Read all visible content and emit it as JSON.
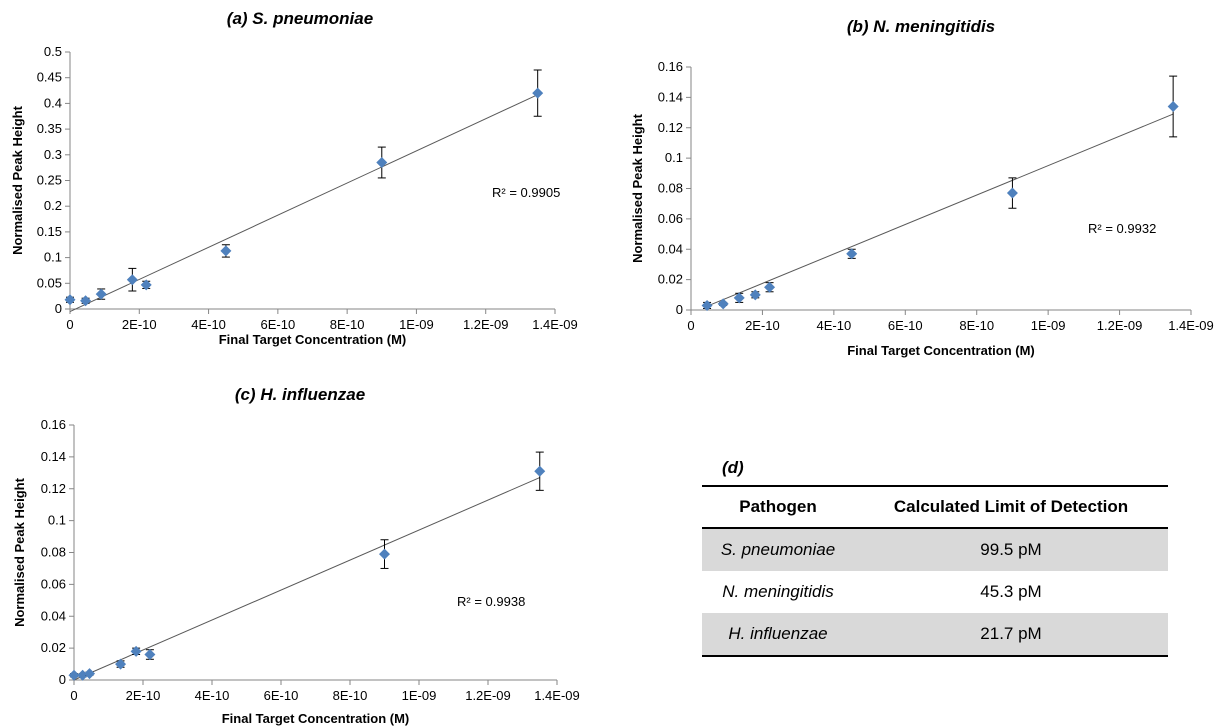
{
  "chart_data": [
    {
      "type": "scatter",
      "title": "(a) S. pneumoniae",
      "xlabel": "Final Target Concentration (M)",
      "ylabel": "Normalised Peak Height",
      "xlim": [
        0,
        1.4e-09
      ],
      "ylim": [
        0,
        0.5
      ],
      "x_ticks": [
        0,
        2e-10,
        4e-10,
        6e-10,
        8e-10,
        1e-09,
        1.2e-09,
        1.4e-09
      ],
      "x_tick_labels": [
        "0",
        "2E-10",
        "4E-10",
        "6E-10",
        "8E-10",
        "1E-09",
        "1.2E-09",
        "1.4E-09"
      ],
      "y_ticks": [
        0,
        0.05,
        0.1,
        0.15,
        0.2,
        0.25,
        0.3,
        0.35,
        0.4,
        0.45,
        0.5
      ],
      "y_tick_labels": [
        "0",
        "0.05",
        "0.1",
        "0.15",
        "0.2",
        "0.25",
        "0.3",
        "0.35",
        "0.4",
        "0.45",
        "0.5"
      ],
      "grid": false,
      "marker_color": "#4f81bd",
      "points": [
        {
          "x": 0,
          "y": 0.018,
          "err": 0.005
        },
        {
          "x": 4.5e-11,
          "y": 0.016,
          "err": 0.005
        },
        {
          "x": 9e-11,
          "y": 0.029,
          "err": 0.01
        },
        {
          "x": 1.8e-10,
          "y": 0.057,
          "err": 0.022
        },
        {
          "x": 2.2e-10,
          "y": 0.047,
          "err": 0.007
        },
        {
          "x": 4.5e-10,
          "y": 0.113,
          "err": 0.012
        },
        {
          "x": 9e-10,
          "y": 0.285,
          "err": 0.03
        },
        {
          "x": 1.35e-09,
          "y": 0.42,
          "err": 0.045
        }
      ],
      "trendline": {
        "x": [
          0,
          1.35e-09
        ],
        "y": [
          -0.005,
          0.417
        ]
      },
      "r2_text": "R² = 0.9905"
    },
    {
      "type": "scatter",
      "title": "(b) N. meningitidis",
      "xlabel": "Final Target Concentration (M)",
      "ylabel": "Normalised Peak Height",
      "xlim": [
        0,
        1.4e-09
      ],
      "ylim": [
        0,
        0.16
      ],
      "x_ticks": [
        0,
        2e-10,
        4e-10,
        6e-10,
        8e-10,
        1e-09,
        1.2e-09,
        1.4e-09
      ],
      "x_tick_labels": [
        "0",
        "2E-10",
        "4E-10",
        "6E-10",
        "8E-10",
        "1E-09",
        "1.2E-09",
        "1.4E-09"
      ],
      "y_ticks": [
        0,
        0.02,
        0.04,
        0.06,
        0.08,
        0.1,
        0.12,
        0.14,
        0.16
      ],
      "y_tick_labels": [
        "0",
        "0.02",
        "0.04",
        "0.06",
        "0.08",
        "0.1",
        "0.12",
        "0.14",
        "0.16"
      ],
      "grid": false,
      "marker_color": "#4f81bd",
      "points": [
        {
          "x": 4.5e-11,
          "y": 0.003,
          "err": 0.002
        },
        {
          "x": 9e-11,
          "y": 0.004,
          "err": 0.001
        },
        {
          "x": 1.35e-10,
          "y": 0.008,
          "err": 0.003
        },
        {
          "x": 1.8e-10,
          "y": 0.01,
          "err": 0.002
        },
        {
          "x": 2.2e-10,
          "y": 0.015,
          "err": 0.003
        },
        {
          "x": 4.5e-10,
          "y": 0.037,
          "err": 0.003
        },
        {
          "x": 9e-10,
          "y": 0.077,
          "err": 0.01
        },
        {
          "x": 1.35e-09,
          "y": 0.134,
          "err": 0.02
        }
      ],
      "trendline": {
        "x": [
          4e-11,
          1.35e-09
        ],
        "y": [
          0.002,
          0.129
        ]
      },
      "r2_text": "R² = 0.9932"
    },
    {
      "type": "scatter",
      "title": "(c) H. influenzae",
      "xlabel": "Final Target Concentration (M)",
      "ylabel": "Normalised Peak Height",
      "xlim": [
        0,
        1.4e-09
      ],
      "ylim": [
        0,
        0.16
      ],
      "x_ticks": [
        0,
        2e-10,
        4e-10,
        6e-10,
        8e-10,
        1e-09,
        1.2e-09,
        1.4e-09
      ],
      "x_tick_labels": [
        "0",
        "2E-10",
        "4E-10",
        "6E-10",
        "8E-10",
        "1E-09",
        "1.2E-09",
        "1.4E-09"
      ],
      "y_ticks": [
        0,
        0.02,
        0.04,
        0.06,
        0.08,
        0.1,
        0.12,
        0.14,
        0.16
      ],
      "y_tick_labels": [
        "0",
        "0.02",
        "0.04",
        "0.06",
        "0.08",
        "0.1",
        "0.12",
        "0.14",
        "0.16"
      ],
      "grid": false,
      "marker_color": "#4f81bd",
      "points": [
        {
          "x": 0,
          "y": 0.003,
          "err": 0.001
        },
        {
          "x": 2.5e-11,
          "y": 0.003,
          "err": 0.001
        },
        {
          "x": 4.5e-11,
          "y": 0.004,
          "err": 0.001
        },
        {
          "x": 1.35e-10,
          "y": 0.01,
          "err": 0.002
        },
        {
          "x": 1.8e-10,
          "y": 0.018,
          "err": 0.002
        },
        {
          "x": 2.2e-10,
          "y": 0.016,
          "err": 0.003
        },
        {
          "x": 9e-10,
          "y": 0.079,
          "err": 0.009
        },
        {
          "x": 1.35e-09,
          "y": 0.131,
          "err": 0.012
        }
      ],
      "trendline": {
        "x": [
          0,
          1.35e-09
        ],
        "y": [
          0,
          0.127
        ]
      },
      "r2_text": "R² = 0.9938"
    }
  ],
  "lod_table": {
    "title": "(d)",
    "headers": [
      "Pathogen",
      "Calculated Limit of Detection"
    ],
    "rows": [
      {
        "pathogen": "S. pneumoniae",
        "lod": "99.5 pM"
      },
      {
        "pathogen": "N. meningitidis",
        "lod": "45.3 pM"
      },
      {
        "pathogen": "H. influenzae",
        "lod": "21.7 pM"
      }
    ]
  }
}
